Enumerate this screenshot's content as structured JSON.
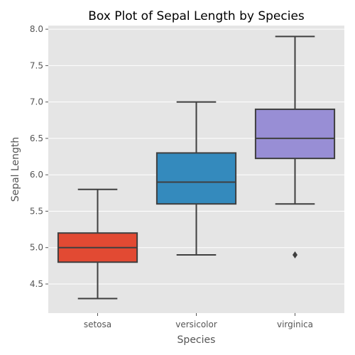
{
  "chart_data": {
    "type": "box",
    "title": "Box Plot of Sepal Length by Species",
    "xlabel": "Species",
    "ylabel": "Sepal Length",
    "ylim": [
      4.1,
      8.05
    ],
    "yticks": [
      "4.5",
      "5.0",
      "5.5",
      "6.0",
      "6.5",
      "7.0",
      "7.5",
      "8.0"
    ],
    "grid": true,
    "categories": [
      "setosa",
      "versicolor",
      "virginica"
    ],
    "boxes": [
      {
        "category": "setosa",
        "whisker_low": 4.3,
        "q1": 4.8,
        "median": 5.0,
        "q3": 5.2,
        "whisker_high": 5.8,
        "outliers": [],
        "color": "#E24A33"
      },
      {
        "category": "versicolor",
        "whisker_low": 4.9,
        "q1": 5.6,
        "median": 5.9,
        "q3": 6.3,
        "whisker_high": 7.0,
        "outliers": [],
        "color": "#348ABD"
      },
      {
        "category": "virginica",
        "whisker_low": 5.6,
        "q1": 6.225,
        "median": 6.5,
        "q3": 6.9,
        "whisker_high": 7.9,
        "outliers": [
          4.9
        ],
        "color": "#988ED5"
      }
    ],
    "colors": {
      "plot_background": "#E5E5E5",
      "grid": "#FFFFFF",
      "lines": "#3F3F3F"
    }
  }
}
